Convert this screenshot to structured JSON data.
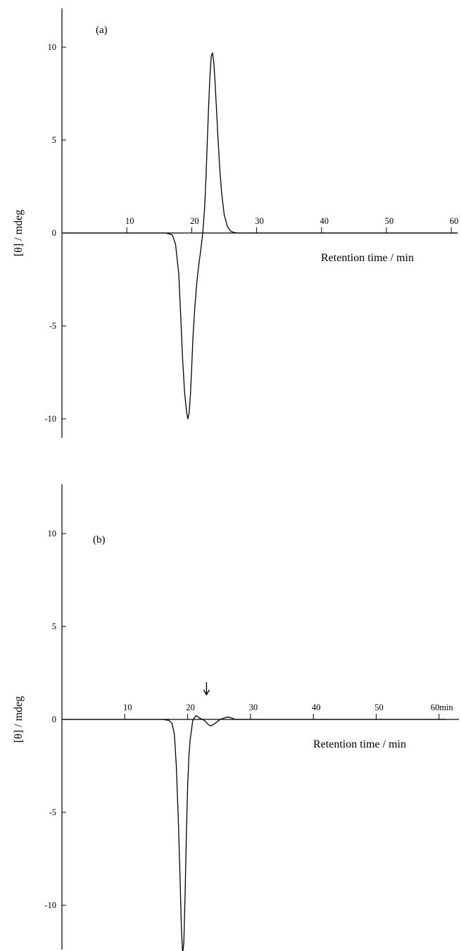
{
  "chart_data": [
    {
      "type": "line",
      "panel_label": "(a)",
      "xlabel": "Retention time / min",
      "ylabel": "[θ] / mdeg",
      "xlim": [
        0,
        61
      ],
      "ylim": [
        -12,
        12
      ],
      "x_ticks": [
        10,
        20,
        30,
        40,
        50,
        60
      ],
      "x_tick_labels": [
        "10",
        "20",
        "30",
        "40",
        "50",
        "60"
      ],
      "x_tick_suffix": "",
      "y_ticks": [
        10,
        5,
        0,
        -5,
        -10
      ],
      "y_tick_labels": [
        "10",
        "5",
        "0",
        "-5",
        "-10"
      ],
      "grid": false,
      "arrow_at_x": null,
      "series": [
        {
          "x": [
            0,
            2,
            4,
            6,
            8,
            10,
            12,
            14,
            16,
            17,
            17.5,
            18,
            18.3,
            18.6,
            18.9,
            19.2,
            19.4,
            19.6,
            19.8,
            20,
            20.2,
            20.5,
            20.8,
            21.1,
            21.4,
            21.7,
            22,
            22.2,
            22.4,
            22.6,
            22.8,
            23,
            23.2,
            23.4,
            23.6,
            23.8,
            24,
            24.3,
            24.6,
            25,
            25.5,
            26,
            26.5,
            27,
            28,
            30,
            35,
            40,
            45,
            50,
            55,
            61
          ],
          "y": [
            0,
            0,
            0,
            0,
            0,
            0,
            0,
            0,
            0,
            -0.1,
            -0.6,
            -2.2,
            -4.4,
            -6.8,
            -8.6,
            -9.6,
            -10.0,
            -9.7,
            -8.7,
            -7.2,
            -5.6,
            -3.9,
            -2.6,
            -1.7,
            -0.9,
            0,
            1.4,
            3.0,
            4.9,
            6.8,
            8.4,
            9.5,
            9.7,
            9.2,
            8.1,
            6.8,
            5.4,
            3.6,
            2.2,
            1.0,
            0.35,
            0.1,
            0.03,
            0,
            0,
            0,
            0,
            0,
            0,
            0,
            0,
            0
          ]
        }
      ]
    },
    {
      "type": "line",
      "panel_label": "(b)",
      "xlabel": "Retention time / min",
      "ylabel": "[θ] / mdeg",
      "xlim": [
        0,
        61
      ],
      "ylim": [
        -13,
        12
      ],
      "x_ticks": [
        10,
        20,
        30,
        40,
        50,
        60
      ],
      "x_tick_labels": [
        "10",
        "20",
        "30",
        "40",
        "50",
        "60"
      ],
      "x_tick_suffix": "min",
      "y_ticks": [
        10,
        5,
        0,
        -5,
        -10
      ],
      "y_tick_labels": [
        "10",
        "5",
        "0",
        "-5",
        "-10"
      ],
      "grid": false,
      "arrow_at_x": 23,
      "series": [
        {
          "x": [
            0,
            2,
            4,
            6,
            8,
            10,
            12,
            14,
            16,
            17,
            17.5,
            17.9,
            18.2,
            18.5,
            18.8,
            19.0,
            19.2,
            19.4,
            19.6,
            19.8,
            20.0,
            20.2,
            20.4,
            20.6,
            20.8,
            21.0,
            21.3,
            21.6,
            22.0,
            22.4,
            22.8,
            23.2,
            23.6,
            24.0,
            24.4,
            24.8,
            25.2,
            25.6,
            26.0,
            26.4,
            26.8,
            27.2,
            27.6,
            28.0,
            29,
            30,
            35,
            40,
            45,
            50,
            55,
            61
          ],
          "y": [
            0,
            0,
            0,
            0,
            0,
            0,
            0,
            0,
            0,
            -0.05,
            -0.2,
            -0.8,
            -2.5,
            -5.2,
            -8.6,
            -11.2,
            -12.6,
            -12.0,
            -9.4,
            -6.2,
            -3.6,
            -2.0,
            -1.1,
            -0.6,
            -0.1,
            0.05,
            0.2,
            0.15,
            0.05,
            0,
            -0.1,
            -0.25,
            -0.35,
            -0.3,
            -0.2,
            -0.1,
            0,
            0.05,
            0.1,
            0.12,
            0.1,
            0.05,
            0,
            0,
            0,
            0,
            0,
            0,
            0,
            0,
            0,
            0
          ]
        }
      ]
    }
  ]
}
